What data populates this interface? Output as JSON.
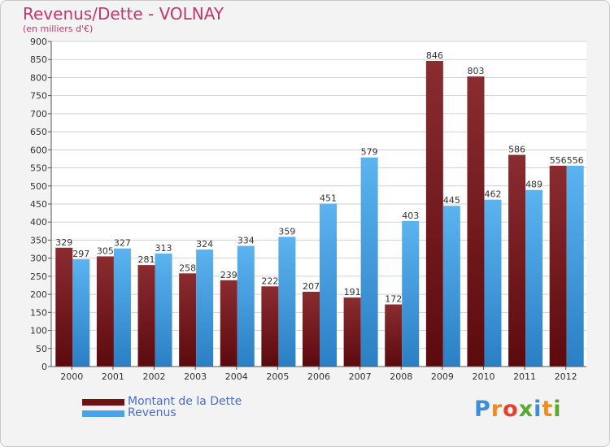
{
  "chart_data": {
    "type": "bar",
    "title": "Revenus/Dette - VOLNAY",
    "subtitle": "(en milliers d'€)",
    "categories": [
      "2000",
      "2001",
      "2002",
      "2003",
      "2004",
      "2005",
      "2006",
      "2007",
      "2008",
      "2009",
      "2010",
      "2011",
      "2012"
    ],
    "series": [
      {
        "name": "Montant de la Dette",
        "color": "#7a1e22",
        "values": [
          329,
          305,
          281,
          258,
          239,
          222,
          207,
          191,
          172,
          846,
          803,
          586,
          556
        ]
      },
      {
        "name": "Revenus",
        "color": "#4aa3e6",
        "values": [
          297,
          327,
          313,
          324,
          334,
          359,
          451,
          579,
          403,
          445,
          462,
          489,
          556
        ]
      }
    ],
    "ylim": [
      0,
      900
    ],
    "yticks": [
      0,
      50,
      100,
      150,
      200,
      250,
      300,
      350,
      400,
      450,
      500,
      550,
      600,
      650,
      700,
      750,
      800,
      850,
      900
    ],
    "grid": true,
    "legend_position": "bottom-left"
  },
  "logo": {
    "text": "Proxiti",
    "letters": [
      "P",
      "r",
      "o",
      "x",
      "i",
      "t",
      "i"
    ],
    "colors": [
      "#3a8fd8",
      "#f08c1e",
      "#e53f2e",
      "#5aa832",
      "#3a8fd8",
      "#f08c1e",
      "#5aa832"
    ]
  }
}
